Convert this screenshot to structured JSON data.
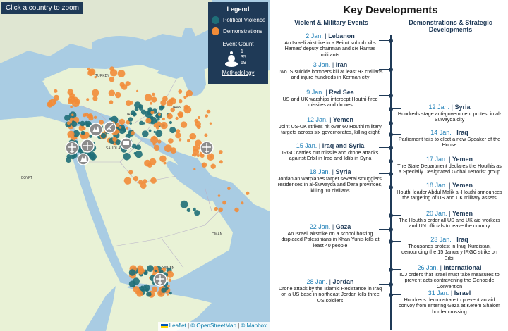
{
  "map": {
    "zoom_hint": "Click a country to zoom",
    "legend": {
      "title": "Legend",
      "items": [
        {
          "label": "Political Violence",
          "color": "#1f6f78"
        },
        {
          "label": "Demonstrations",
          "color": "#f28c38"
        }
      ],
      "event_count_title": "Event Count",
      "event_count_values": [
        "1",
        "35",
        "69"
      ],
      "methodology": "Methodology"
    },
    "attribution": {
      "leaflet": "Leaflet",
      "osm": "© OpenStreetMap",
      "mapbox": "© Mapbox"
    },
    "colors": {
      "sea": "#a9cce3",
      "land": "#e9f2d6",
      "land_other": "#dfe6d2",
      "political_violence": "#1f6f78",
      "demonstrations": "#f28c38"
    },
    "event_icons": [
      "airstrike-icon",
      "drone-icon",
      "missile-icon",
      "explosion-icon",
      "protest-icon"
    ]
  },
  "timeline": {
    "title": "Key Developments",
    "left_heading": "Violent & Military Events",
    "right_heading": "Demonstrations & Strategic Developments",
    "left_events": [
      {
        "date": "2 Jan.",
        "location": "Lebanon",
        "text": "An Israeli airstrike in a Beirut suburb kills Hamas' deputy chairman and six Hamas militants"
      },
      {
        "date": "3 Jan.",
        "location": "Iran",
        "text": "Two IS suicide bombers kill at least 93 civilians and injure hundreds in Kerman city"
      },
      {
        "date": "9 Jan.",
        "location": "Red Sea",
        "text": "US and UK warships intercept Houthi-fired missiles and drones"
      },
      {
        "date": "12 Jan.",
        "location": "Yemen",
        "text": "Joint US-UK strikes hit over 60 Houthi military targets across six governorates, killing eight"
      },
      {
        "date": "15 Jan.",
        "location": "Iraq and Syria",
        "text": "IRGC carries out missile and drone attacks against Erbil in Iraq and Idlib in Syria"
      },
      {
        "date": "18 Jan.",
        "location": "Syria",
        "text": "Jordanian warplanes target several smugglers' residences in al-Suwayda and Dara provinces, killing 10 civilians"
      },
      {
        "date": "22 Jan.",
        "location": "Gaza",
        "text": "An Israeli airstrike on a school hosting displaced Palestinians in Khan Yunis kills at least 40 people"
      },
      {
        "date": "28 Jan.",
        "location": "Jordan",
        "text": "Drone attack by the Islamic Resistance in Iraq on a US base in northeast Jordan kills three US soldiers"
      }
    ],
    "right_events": [
      {
        "date": "12 Jan.",
        "location": "Syria",
        "text": "Hundreds stage anti-government protest in al-Suwayda city"
      },
      {
        "date": "14 Jan.",
        "location": "Iraq",
        "text": "Parliament fails to elect a new Speaker of the House"
      },
      {
        "date": "17 Jan.",
        "location": "Yemen",
        "text": "The State Department declares the Houthis as a Specially Designated Global Terrorist group"
      },
      {
        "date": "18 Jan.",
        "location": "Yemen",
        "text": "Houthi leader Abdul Malik al-Houthi announces the targeting of US and UK military assets"
      },
      {
        "date": "20 Jan.",
        "location": "Yemen",
        "text": "The Houthis order all US and UK aid workers and UN officials to leave the country"
      },
      {
        "date": "23 Jan.",
        "location": "Iraq",
        "text": "Thousands protest in Iraqi Kurdistan, denouncing the 15 January IRGC strike on Erbil"
      },
      {
        "date": "26 Jan.",
        "location": "International",
        "text": "ICJ orders that Israel must take measures to prevent acts contravening the Genocide Convention"
      },
      {
        "date": "31 Jan.",
        "location": "Israel",
        "text": "Hundreds demonstrate to prevent an aid convoy from entering Gaza at Kerem Shalom border crossing"
      }
    ]
  }
}
